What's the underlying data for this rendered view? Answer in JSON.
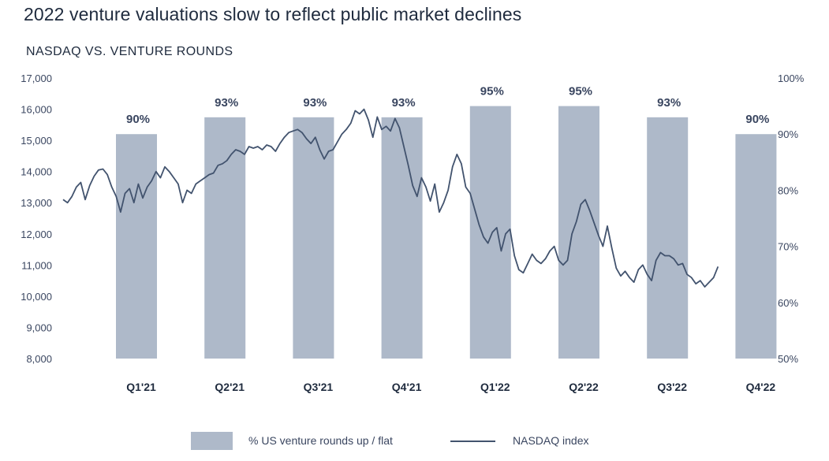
{
  "title": "2022 venture valuations slow to reflect public market declines",
  "colors": {
    "bar": "#aeb9c9",
    "line": "#42536e"
  },
  "chart_data": {
    "type": "bar+line",
    "title": "2022 venture valuations slow to reflect public market declines",
    "subtitle": "NASDAQ VS. VENTURE ROUNDS",
    "categories": [
      "Q1'21",
      "Q2'21",
      "Q3'21",
      "Q4'21",
      "Q1'22",
      "Q2'22",
      "Q3'22",
      "Q4'22"
    ],
    "bar_series": {
      "name": "% US venture rounds up / flat",
      "axis": "right",
      "values": [
        90,
        93,
        93,
        93,
        95,
        95,
        93,
        90
      ],
      "labels": [
        "90%",
        "93%",
        "93%",
        "93%",
        "95%",
        "95%",
        "93%",
        "90%"
      ]
    },
    "line_series": {
      "name": "NASDAQ index",
      "axis": "left",
      "points": [
        [
          0.0,
          13100
        ],
        [
          0.05,
          13000
        ],
        [
          0.1,
          13200
        ],
        [
          0.15,
          13500
        ],
        [
          0.2,
          13650
        ],
        [
          0.25,
          13100
        ],
        [
          0.3,
          13550
        ],
        [
          0.35,
          13850
        ],
        [
          0.4,
          14050
        ],
        [
          0.45,
          14080
        ],
        [
          0.5,
          13900
        ],
        [
          0.55,
          13500
        ],
        [
          0.6,
          13200
        ],
        [
          0.65,
          12700
        ],
        [
          0.7,
          13300
        ],
        [
          0.75,
          13450
        ],
        [
          0.8,
          13000
        ],
        [
          0.85,
          13600
        ],
        [
          0.9,
          13150
        ],
        [
          0.95,
          13500
        ],
        [
          1.0,
          13700
        ],
        [
          1.05,
          14000
        ],
        [
          1.1,
          13800
        ],
        [
          1.15,
          14150
        ],
        [
          1.2,
          14000
        ],
        [
          1.25,
          13800
        ],
        [
          1.3,
          13600
        ],
        [
          1.35,
          13000
        ],
        [
          1.4,
          13400
        ],
        [
          1.45,
          13300
        ],
        [
          1.5,
          13600
        ],
        [
          1.55,
          13700
        ],
        [
          1.6,
          13800
        ],
        [
          1.65,
          13900
        ],
        [
          1.7,
          13950
        ],
        [
          1.75,
          14200
        ],
        [
          1.8,
          14250
        ],
        [
          1.85,
          14350
        ],
        [
          1.9,
          14550
        ],
        [
          1.95,
          14700
        ],
        [
          2.0,
          14650
        ],
        [
          2.05,
          14550
        ],
        [
          2.1,
          14800
        ],
        [
          2.15,
          14750
        ],
        [
          2.2,
          14800
        ],
        [
          2.25,
          14700
        ],
        [
          2.3,
          14850
        ],
        [
          2.35,
          14800
        ],
        [
          2.4,
          14650
        ],
        [
          2.45,
          14900
        ],
        [
          2.5,
          15100
        ],
        [
          2.55,
          15250
        ],
        [
          2.6,
          15300
        ],
        [
          2.65,
          15350
        ],
        [
          2.7,
          15250
        ],
        [
          2.75,
          15050
        ],
        [
          2.8,
          14900
        ],
        [
          2.85,
          15100
        ],
        [
          2.9,
          14700
        ],
        [
          2.95,
          14400
        ],
        [
          3.0,
          14650
        ],
        [
          3.05,
          14700
        ],
        [
          3.1,
          14950
        ],
        [
          3.15,
          15200
        ],
        [
          3.2,
          15350
        ],
        [
          3.25,
          15550
        ],
        [
          3.3,
          15950
        ],
        [
          3.35,
          15850
        ],
        [
          3.4,
          16000
        ],
        [
          3.45,
          15650
        ],
        [
          3.5,
          15100
        ],
        [
          3.55,
          15750
        ],
        [
          3.6,
          15350
        ],
        [
          3.65,
          15450
        ],
        [
          3.7,
          15300
        ],
        [
          3.75,
          15700
        ],
        [
          3.8,
          15400
        ],
        [
          3.85,
          14800
        ],
        [
          3.9,
          14200
        ],
        [
          3.95,
          13550
        ],
        [
          4.0,
          13200
        ],
        [
          4.05,
          13800
        ],
        [
          4.1,
          13500
        ],
        [
          4.15,
          13050
        ],
        [
          4.2,
          13600
        ],
        [
          4.25,
          12700
        ],
        [
          4.3,
          13000
        ],
        [
          4.35,
          13400
        ],
        [
          4.4,
          14150
        ],
        [
          4.45,
          14550
        ],
        [
          4.5,
          14250
        ],
        [
          4.55,
          13500
        ],
        [
          4.6,
          13300
        ],
        [
          4.65,
          12800
        ],
        [
          4.7,
          12300
        ],
        [
          4.75,
          11900
        ],
        [
          4.8,
          11700
        ],
        [
          4.85,
          12050
        ],
        [
          4.9,
          12200
        ],
        [
          4.95,
          11450
        ],
        [
          5.0,
          12000
        ],
        [
          5.05,
          12150
        ],
        [
          5.1,
          11300
        ],
        [
          5.15,
          10850
        ],
        [
          5.2,
          10750
        ],
        [
          5.25,
          11050
        ],
        [
          5.3,
          11350
        ],
        [
          5.35,
          11150
        ],
        [
          5.4,
          11050
        ],
        [
          5.45,
          11200
        ],
        [
          5.5,
          11450
        ],
        [
          5.55,
          11600
        ],
        [
          5.6,
          11150
        ],
        [
          5.65,
          11000
        ],
        [
          5.7,
          11150
        ],
        [
          5.75,
          12000
        ],
        [
          5.8,
          12400
        ],
        [
          5.85,
          12950
        ],
        [
          5.9,
          13100
        ],
        [
          5.95,
          12750
        ],
        [
          6.0,
          12350
        ],
        [
          6.05,
          11950
        ],
        [
          6.1,
          11600
        ],
        [
          6.15,
          12250
        ],
        [
          6.2,
          11550
        ],
        [
          6.25,
          10900
        ],
        [
          6.3,
          10650
        ],
        [
          6.35,
          10800
        ],
        [
          6.4,
          10600
        ],
        [
          6.45,
          10450
        ],
        [
          6.5,
          10850
        ],
        [
          6.55,
          11000
        ],
        [
          6.6,
          10700
        ],
        [
          6.65,
          10500
        ],
        [
          6.7,
          11150
        ],
        [
          6.75,
          11400
        ],
        [
          6.8,
          11300
        ],
        [
          6.85,
          11300
        ],
        [
          6.9,
          11200
        ],
        [
          6.95,
          11000
        ],
        [
          7.0,
          11050
        ],
        [
          7.05,
          10700
        ],
        [
          7.1,
          10600
        ],
        [
          7.15,
          10400
        ],
        [
          7.2,
          10500
        ],
        [
          7.25,
          10300
        ],
        [
          7.3,
          10450
        ],
        [
          7.35,
          10600
        ],
        [
          7.4,
          10950
        ]
      ]
    },
    "y_left": {
      "min": 8000,
      "max": 17000,
      "ticks": [
        "8,000",
        "9,000",
        "10,000",
        "11,000",
        "12,000",
        "13,000",
        "14,000",
        "15,000",
        "16,000",
        "17,000"
      ]
    },
    "y_right": {
      "min": 50,
      "max": 100,
      "ticks": [
        "50%",
        "60%",
        "70%",
        "80%",
        "90%",
        "100%"
      ]
    },
    "grid": false,
    "legend": "bottom-center"
  },
  "legend": {
    "bars": "% US venture rounds up / flat",
    "line": "NASDAQ index"
  }
}
